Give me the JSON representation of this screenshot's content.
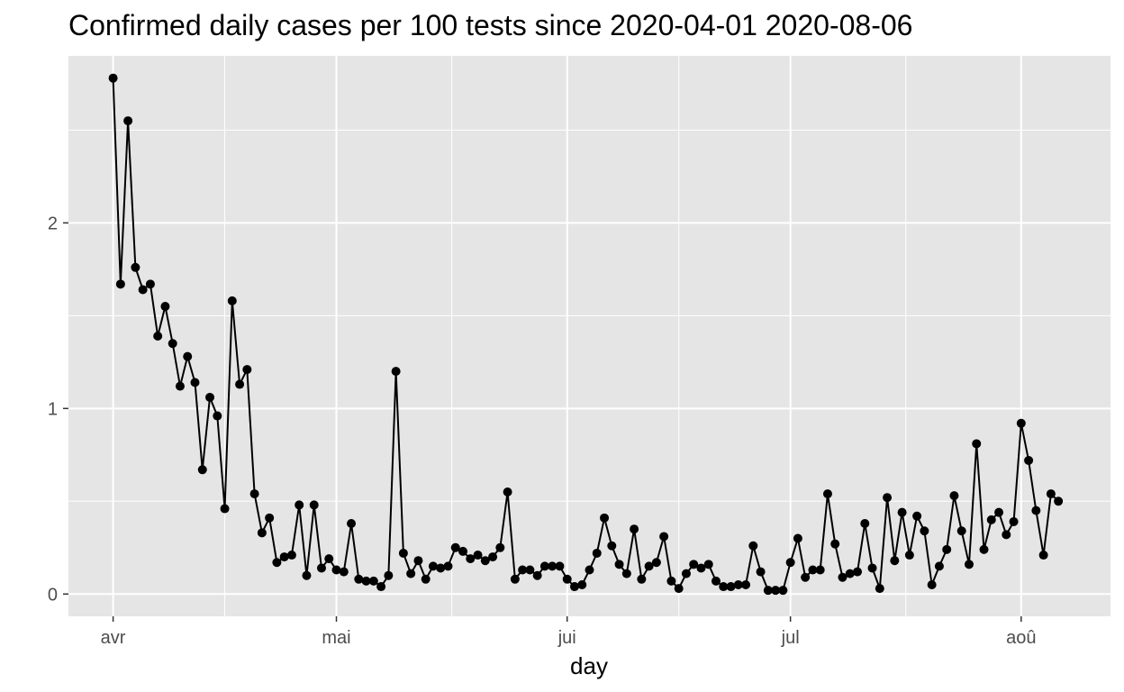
{
  "chart_data": {
    "type": "line",
    "title": "Confirmed daily cases per 100 tests since 2020-04-01 2020-08-06",
    "xlabel": "day",
    "ylabel": "",
    "x_tick_labels": [
      "avr",
      "mai",
      "jui",
      "jul",
      "aoû"
    ],
    "x_tick_dates": [
      "2020-04-01",
      "2020-05-01",
      "2020-06-01",
      "2020-07-01",
      "2020-08-01"
    ],
    "y_ticks": [
      0,
      1,
      2
    ],
    "y_tick_labels": [
      "0",
      "1",
      "2"
    ],
    "xlim": [
      "2020-03-26",
      "2020-08-13"
    ],
    "ylim": [
      -0.12,
      2.9
    ],
    "grid": true,
    "legend": "none",
    "colors": {
      "panel": "#e5e5e5",
      "grid": "#ffffff",
      "line": "#000000",
      "point": "#000000",
      "tick_text": "#4d4d4d"
    },
    "series": [
      {
        "x_start": "2020-04-01",
        "x_end": "2020-08-06",
        "values": [
          2.78,
          1.67,
          2.55,
          1.76,
          1.64,
          1.67,
          1.39,
          1.55,
          1.35,
          1.12,
          1.28,
          1.14,
          0.67,
          1.06,
          0.96,
          0.46,
          1.58,
          1.13,
          1.21,
          0.54,
          0.33,
          0.41,
          0.17,
          0.2,
          0.21,
          0.48,
          0.1,
          0.48,
          0.14,
          0.19,
          0.13,
          0.12,
          0.38,
          0.08,
          0.07,
          0.07,
          0.04,
          0.1,
          1.2,
          0.22,
          0.11,
          0.18,
          0.08,
          0.15,
          0.14,
          0.15,
          0.25,
          0.23,
          0.19,
          0.21,
          0.18,
          0.2,
          0.25,
          0.55,
          0.08,
          0.13,
          0.13,
          0.1,
          0.15,
          0.15,
          0.15,
          0.08,
          0.04,
          0.05,
          0.13,
          0.22,
          0.41,
          0.26,
          0.16,
          0.11,
          0.35,
          0.08,
          0.15,
          0.17,
          0.31,
          0.07,
          0.03,
          0.11,
          0.16,
          0.14,
          0.16,
          0.07,
          0.04,
          0.04,
          0.05,
          0.05,
          0.26,
          0.12,
          0.02,
          0.02,
          0.02,
          0.17,
          0.3,
          0.09,
          0.13,
          0.13,
          0.54,
          0.27,
          0.09,
          0.11,
          0.12,
          0.38,
          0.14,
          0.03,
          0.52,
          0.18,
          0.44,
          0.21,
          0.42,
          0.34,
          0.05,
          0.15,
          0.24,
          0.53,
          0.34,
          0.16,
          0.81,
          0.24,
          0.4,
          0.44,
          0.32,
          0.39,
          0.92,
          0.72,
          0.45,
          0.21,
          0.54,
          0.5
        ]
      }
    ]
  }
}
